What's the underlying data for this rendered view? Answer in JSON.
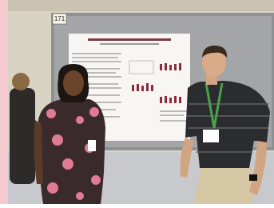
{
  "sign": {
    "number": "171"
  }
}
